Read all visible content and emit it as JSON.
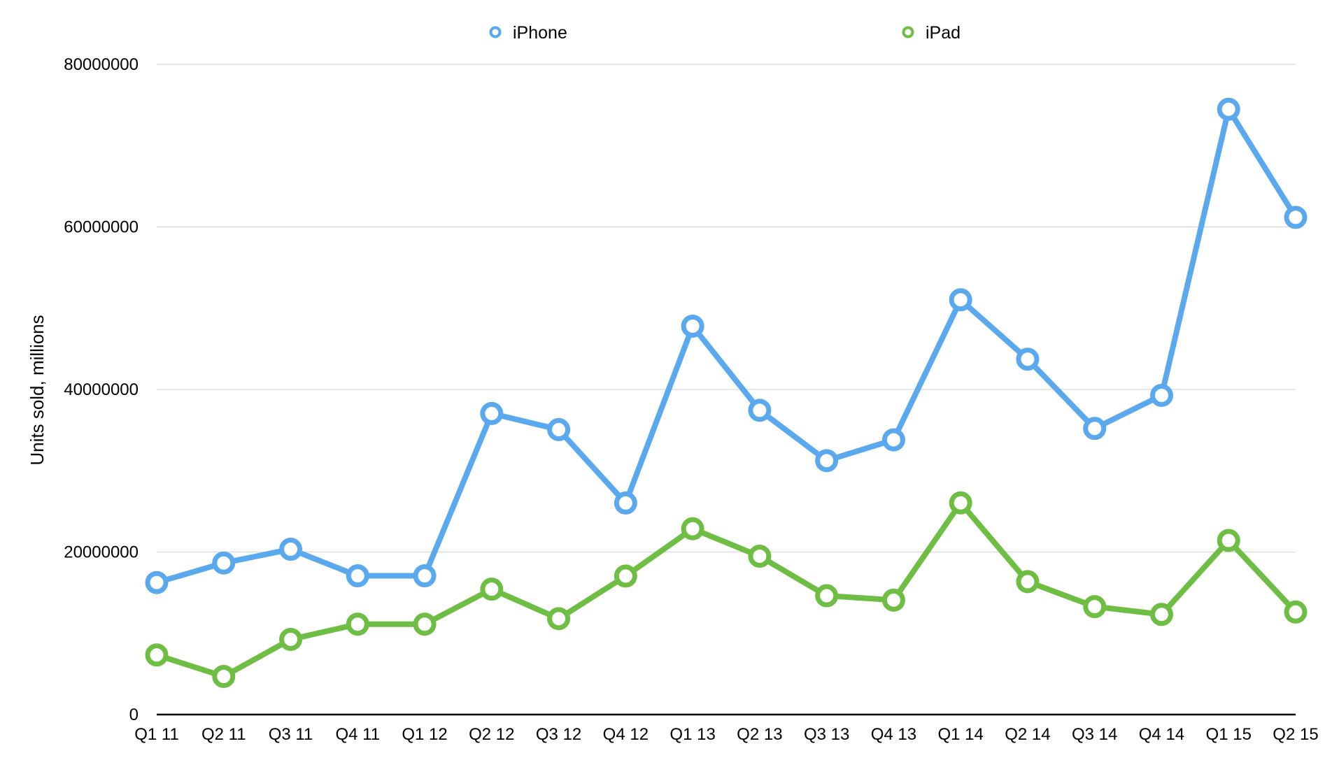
{
  "chart_data": {
    "type": "line",
    "title": "",
    "xlabel": "",
    "ylabel": "Units sold, millions",
    "ylim": [
      0,
      80000000
    ],
    "yticks": [
      0,
      20000000,
      40000000,
      60000000,
      80000000
    ],
    "ytick_labels": [
      "0",
      "20000000",
      "40000000",
      "60000000",
      "80000000"
    ],
    "grid": true,
    "legend_position": "top",
    "categories": [
      "Q1 11",
      "Q2 11",
      "Q3 11",
      "Q4 11",
      "Q1 12",
      "Q2 12",
      "Q3 12",
      "Q4 12",
      "Q1 13",
      "Q2 13",
      "Q3 13",
      "Q4 13",
      "Q1 14",
      "Q2 14",
      "Q3 14",
      "Q4 14",
      "Q1 15",
      "Q2 15"
    ],
    "series": [
      {
        "name": "iPhone",
        "color": "#5aa9ee",
        "values": [
          16240000,
          18650000,
          20340000,
          17070000,
          17070000,
          37040000,
          35060000,
          26030000,
          47790000,
          37430000,
          31240000,
          33800000,
          51030000,
          43720000,
          35200000,
          39270000,
          74470000,
          61170000
        ]
      },
      {
        "name": "iPad",
        "color": "#6fbe44",
        "values": [
          7330000,
          4690000,
          9250000,
          11120000,
          11120000,
          15430000,
          11800000,
          17040000,
          22860000,
          19480000,
          14620000,
          14080000,
          26040000,
          16350000,
          13280000,
          12320000,
          21420000,
          12620000
        ]
      }
    ]
  }
}
